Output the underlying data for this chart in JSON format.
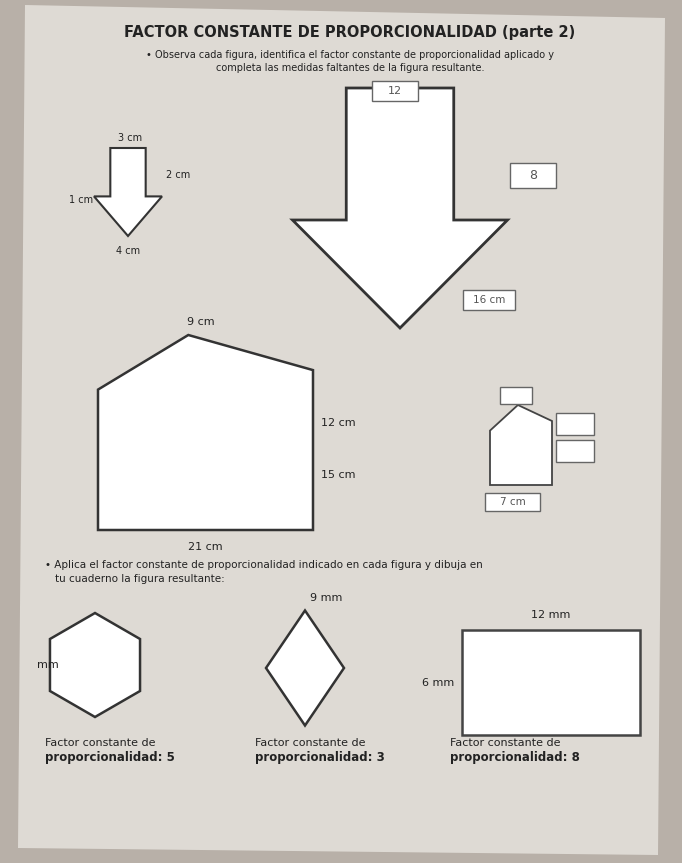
{
  "title": "FACTOR CONSTANTE DE PROPORCIONALIDAD (parte 2)",
  "subtitle1": "• Observa cada figura, identifica el factor constante de proporcionalidad aplicado y",
  "subtitle2": "completa las medidas faltantes de la figura resultante.",
  "section2_text1": "• Aplica el factor constante de proporcionalidad indicado en cada figura y dibuja en",
  "section2_text2": "tu cuaderno la figura resultante:",
  "bg_color": "#b8b0a8",
  "paper_color": "#dedad4",
  "line_color": "#333333",
  "text_color": "#222222",
  "arrow_small_labels": [
    "3 cm",
    "2 cm",
    "1 cm",
    "4 cm"
  ],
  "arrow_big_label": "16 cm",
  "box_val_top": "12",
  "box_val_right": "8",
  "penta_labels": [
    "9 cm",
    "12 cm",
    "15 cm",
    "21 cm"
  ],
  "small_house_label": "7 cm",
  "hex_side_label": "mm",
  "diamond_top_label": "9 mm",
  "rect_top_label": "12 mm",
  "rect_side_label": "6 mm",
  "factor1_line1": "Factor constante de",
  "factor1_line2": "proporcionalidad: 5",
  "factor2_line1": "Factor constante de",
  "factor2_line2": "proporcionalidad: 3",
  "factor3_line1": "Factor constante de",
  "factor3_line2": "proporcionalidad: 8"
}
